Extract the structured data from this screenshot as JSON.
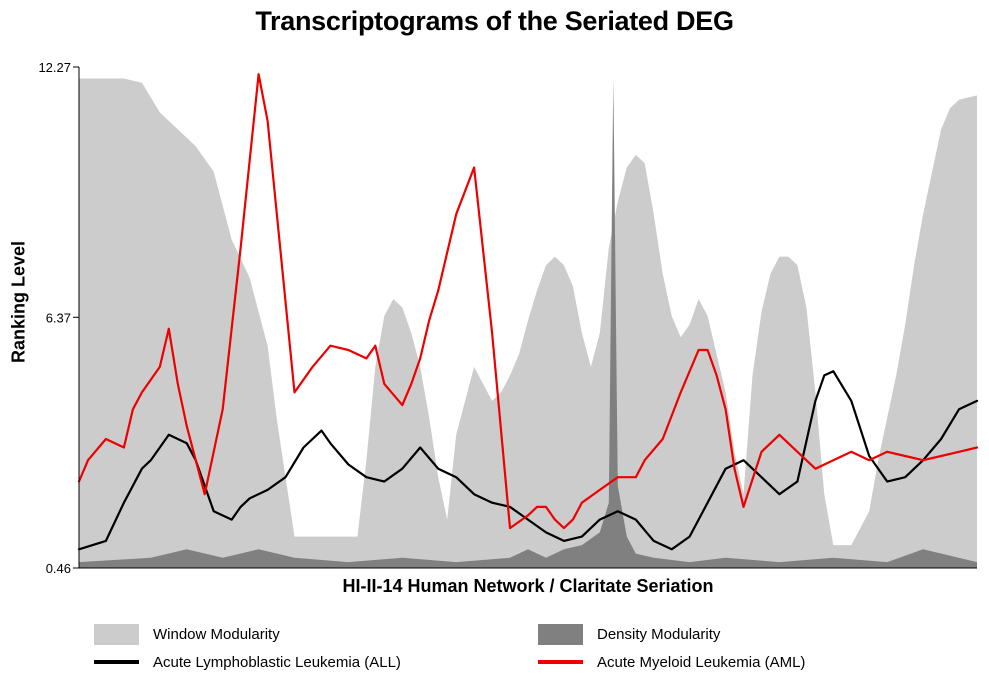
{
  "title": "Transcriptograms of the Seriated DEG",
  "chart_data": {
    "type": "area",
    "title": "Transcriptograms of the Seriated DEG",
    "xlabel": "HI-II-14 Human Network / Claritate Seriation",
    "ylabel": "Ranking Level",
    "yticks": [
      "0.46",
      "6.37",
      "12.27"
    ],
    "ylim": [
      0.46,
      12.27
    ],
    "xlim": [
      0,
      100
    ],
    "grid": false,
    "legend_position": "bottom",
    "series": [
      {
        "name": "Window Modularity",
        "kind": "filled-area",
        "color": "#cccccc",
        "x": [
          0,
          3,
          5,
          7,
          9,
          11,
          13,
          15,
          17,
          19,
          21,
          22,
          23,
          24,
          25,
          27,
          29,
          31,
          32,
          33,
          34,
          35,
          36,
          37,
          38,
          39,
          40,
          41,
          42,
          43,
          44,
          45,
          46,
          47,
          48,
          49,
          50,
          51,
          52,
          53,
          54,
          55,
          56,
          57,
          58,
          59,
          60,
          61,
          62,
          63,
          64,
          65,
          66,
          67,
          68,
          69,
          70,
          71,
          72,
          73,
          74,
          75,
          76,
          77,
          78,
          79,
          80,
          81,
          82,
          83,
          84,
          85,
          86,
          87,
          88,
          89,
          90,
          91,
          92,
          93,
          94,
          95,
          96,
          97,
          98,
          100
        ],
        "y": [
          12.0,
          12.0,
          12.0,
          11.9,
          11.2,
          10.8,
          10.4,
          9.8,
          8.2,
          7.3,
          5.7,
          4.0,
          2.6,
          1.2,
          1.2,
          1.2,
          1.2,
          1.2,
          3.0,
          5.2,
          6.4,
          6.8,
          6.6,
          6.0,
          5.2,
          4.0,
          2.6,
          1.6,
          3.6,
          4.4,
          5.2,
          4.8,
          4.4,
          4.6,
          5.0,
          5.5,
          6.3,
          7.0,
          7.6,
          7.8,
          7.6,
          7.1,
          6.0,
          5.2,
          6.0,
          8.0,
          9.1,
          9.9,
          10.2,
          10.0,
          8.8,
          7.4,
          6.4,
          5.9,
          6.2,
          6.8,
          6.4,
          5.5,
          4.6,
          3.2,
          2.2,
          5.0,
          6.5,
          7.4,
          7.8,
          7.8,
          7.6,
          6.6,
          4.6,
          2.2,
          1.0,
          1.0,
          1.0,
          1.4,
          1.8,
          3.0,
          4.0,
          5.0,
          6.2,
          7.6,
          8.8,
          9.8,
          10.8,
          11.3,
          11.5,
          11.6
        ]
      },
      {
        "name": "Density Modularity",
        "kind": "filled-spikes",
        "color": "#808080",
        "x": [
          0,
          8,
          12,
          16,
          20,
          24,
          30,
          36,
          42,
          48,
          50,
          52,
          54,
          56,
          58,
          59,
          59.5,
          60,
          61,
          62,
          64,
          68,
          72,
          78,
          84,
          90,
          94,
          100
        ],
        "y": [
          0.6,
          0.7,
          0.9,
          0.7,
          0.9,
          0.7,
          0.6,
          0.7,
          0.6,
          0.7,
          0.9,
          0.7,
          0.9,
          1.0,
          1.3,
          2.0,
          12.0,
          2.4,
          1.2,
          0.8,
          0.7,
          0.6,
          0.7,
          0.6,
          0.7,
          0.6,
          0.9,
          0.6
        ]
      },
      {
        "name": "Acute Lymphoblastic Leukemia (ALL)",
        "kind": "line",
        "color": "#000000",
        "x": [
          0,
          3,
          5,
          7,
          8,
          10,
          12,
          13,
          14,
          15,
          17,
          18,
          19,
          21,
          23,
          25,
          27,
          28,
          30,
          32,
          34,
          36,
          38,
          40,
          42,
          44,
          46,
          48,
          50,
          52,
          54,
          56,
          58,
          60,
          62,
          64,
          66,
          68,
          70,
          72,
          74,
          76,
          78,
          80,
          82,
          83,
          84,
          86,
          88,
          90,
          92,
          94,
          96,
          98,
          100
        ],
        "y": [
          0.9,
          1.1,
          2.0,
          2.8,
          3.0,
          3.6,
          3.4,
          3.0,
          2.4,
          1.8,
          1.6,
          1.9,
          2.1,
          2.3,
          2.6,
          3.3,
          3.7,
          3.4,
          2.9,
          2.6,
          2.5,
          2.8,
          3.3,
          2.8,
          2.6,
          2.2,
          2.0,
          1.9,
          1.6,
          1.3,
          1.1,
          1.2,
          1.6,
          1.8,
          1.6,
          1.1,
          0.9,
          1.2,
          2.0,
          2.8,
          3.0,
          2.6,
          2.2,
          2.5,
          4.4,
          5.0,
          5.1,
          4.4,
          3.1,
          2.5,
          2.6,
          3.0,
          3.5,
          4.2,
          4.4
        ]
      },
      {
        "name": "Acute Myeloid Leukemia (AML)",
        "kind": "line",
        "color": "#ee0000",
        "x": [
          0,
          1,
          3,
          5,
          6,
          7,
          9,
          10,
          11,
          12,
          14,
          16,
          18,
          20,
          21,
          24,
          26,
          28,
          30,
          32,
          33,
          34,
          36,
          37,
          38,
          39,
          40,
          42,
          44,
          46,
          48,
          50,
          51,
          52,
          53,
          54,
          55,
          56,
          58,
          60,
          62,
          63,
          65,
          67,
          69,
          70,
          71,
          72,
          73,
          74,
          76,
          78,
          80,
          82,
          84,
          86,
          88,
          90,
          92,
          94,
          96,
          98,
          100
        ],
        "y": [
          2.5,
          3.0,
          3.5,
          3.3,
          4.2,
          4.6,
          5.2,
          6.1,
          4.8,
          3.8,
          2.2,
          4.2,
          8.0,
          12.1,
          11.0,
          4.6,
          5.2,
          5.7,
          5.6,
          5.4,
          5.7,
          4.8,
          4.3,
          4.8,
          5.4,
          6.3,
          7.0,
          8.8,
          9.9,
          6.0,
          1.4,
          1.7,
          1.9,
          1.9,
          1.6,
          1.4,
          1.6,
          2.0,
          2.3,
          2.6,
          2.6,
          3.0,
          3.5,
          4.6,
          5.6,
          5.6,
          5.0,
          4.2,
          2.8,
          1.9,
          3.2,
          3.6,
          3.2,
          2.8,
          3.0,
          3.2,
          3.0,
          3.2,
          3.1,
          3.0,
          3.1,
          3.2,
          3.3
        ]
      }
    ]
  },
  "legend": {
    "window_modularity": "Window Modularity",
    "density_modularity": "Density Modularity",
    "all": "Acute Lymphoblastic Leukemia (ALL)",
    "aml": "Acute Myeloid Leukemia (AML)"
  },
  "colors": {
    "window": "#cccccc",
    "density": "#808080",
    "all": "#000000",
    "aml": "#ee0000"
  }
}
